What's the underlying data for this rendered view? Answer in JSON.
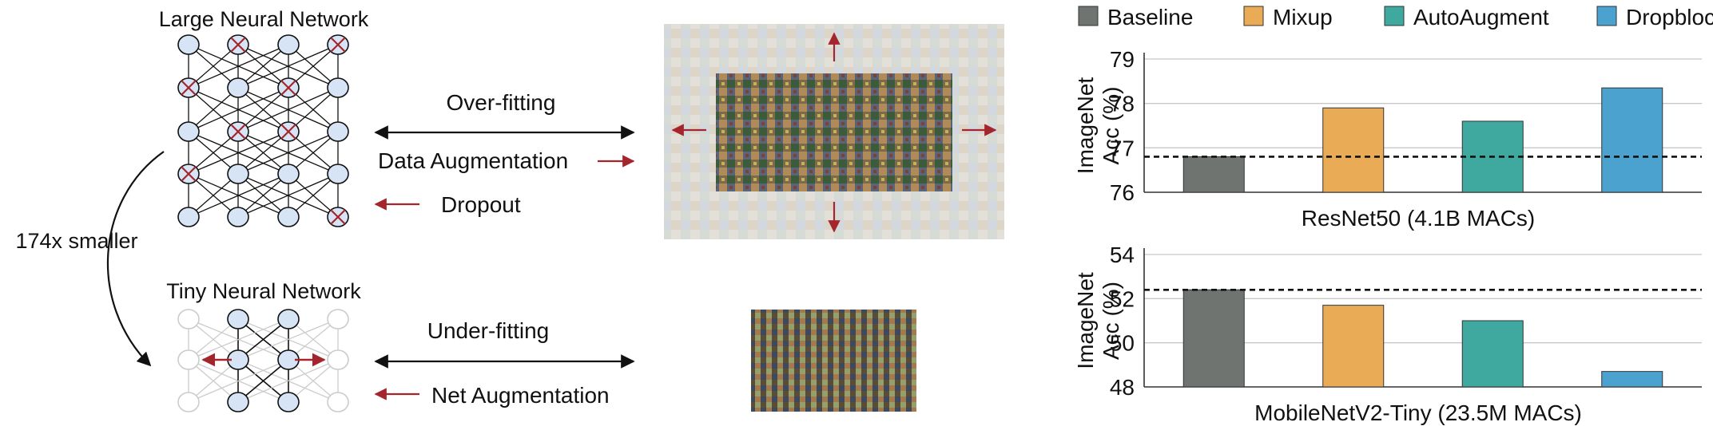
{
  "left": {
    "large_title": "Large Neural Network",
    "tiny_title": "Tiny Neural Network",
    "shrink_label": "174x smaller"
  },
  "middle": {
    "overfitting": "Over-fitting",
    "data_aug": "Data Augmentation",
    "dropout": "Dropout",
    "underfitting": "Under-fitting",
    "net_aug": "Net Augmentation"
  },
  "colors": {
    "node_fill": "#d6e4f5",
    "accent_red": "#a4262c",
    "faded": "#cccccc"
  },
  "legend": [
    {
      "name": "Baseline",
      "color": "#6f7470"
    },
    {
      "name": "Mixup",
      "color": "#e9ab55"
    },
    {
      "name": "AutoAugment",
      "color": "#3fa89f"
    },
    {
      "name": "Dropblock",
      "color": "#4ba2cf"
    }
  ],
  "chart_data": [
    {
      "type": "bar",
      "title": "ResNet50 (4.1B MACs)",
      "ylabel": "ImageNet\nAcc (%)",
      "categories": [
        "Baseline",
        "Mixup",
        "AutoAugment",
        "Dropblock"
      ],
      "values": [
        76.8,
        77.9,
        77.6,
        78.35
      ],
      "ylim": [
        76,
        79
      ],
      "yticks": [
        "76",
        "77",
        "78",
        "79"
      ],
      "baseline_ref": 76.8,
      "grid": true
    },
    {
      "type": "bar",
      "title": "MobileNetV2-Tiny (23.5M MACs)",
      "ylabel": "ImageNet\nAcc (%)",
      "categories": [
        "Baseline",
        "Mixup",
        "AutoAugment",
        "Dropblock"
      ],
      "values": [
        52.4,
        51.7,
        51.0,
        48.7
      ],
      "ylim": [
        48,
        54
      ],
      "yticks": [
        "48",
        "50",
        "52",
        "54"
      ],
      "baseline_ref": 52.4,
      "grid": true
    }
  ]
}
